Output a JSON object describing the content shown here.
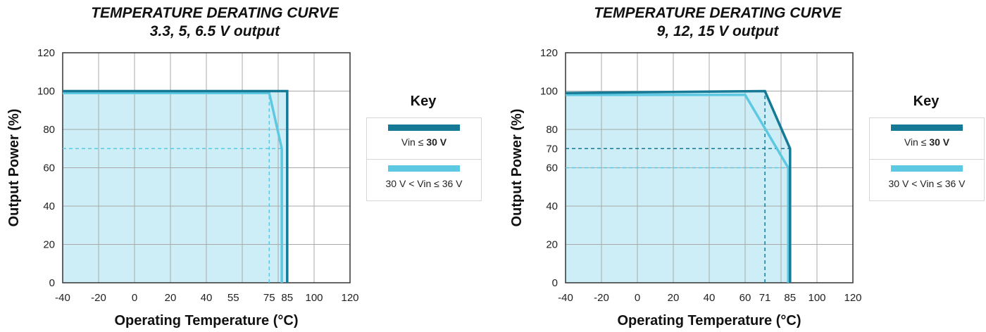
{
  "colors": {
    "dark_curve": "#167a96",
    "light_curve": "#5cc8e2",
    "fill": "#cdeef6",
    "grid": "#a9a9a9"
  },
  "chart_data": [
    {
      "type": "line",
      "title": "TEMPERATURE DERATING CURVE",
      "subtitle": "3.3, 5, 6.5 V output",
      "xlabel": "Operating Temperature (°C)",
      "ylabel": "Output Power (%)",
      "xlim": [
        -40,
        120
      ],
      "ylim": [
        0,
        120
      ],
      "x_ticks": [
        -40,
        -20,
        0,
        20,
        40,
        55,
        75,
        85,
        100,
        120
      ],
      "y_ticks": [
        0,
        20,
        40,
        60,
        80,
        100,
        120
      ],
      "grid_x": [
        -40,
        -20,
        0,
        20,
        40,
        60,
        80,
        100,
        120
      ],
      "grid_y": [
        0,
        20,
        40,
        60,
        80,
        100,
        120
      ],
      "grid": true,
      "series": [
        {
          "name": "Vin ≤ 30 V",
          "color_key": "dark_curve",
          "points": [
            [
              -40,
              100
            ],
            [
              85,
              100
            ],
            [
              85,
              0
            ]
          ]
        },
        {
          "name": "30 V < Vin ≤ 36 V",
          "color_key": "light_curve",
          "points": [
            [
              -40,
              99
            ],
            [
              75,
              99
            ],
            [
              82,
              70
            ],
            [
              82,
              0
            ]
          ]
        }
      ],
      "reference_lines": [
        {
          "color_key": "light_curve",
          "points": [
            [
              -40,
              70
            ],
            [
              82,
              70
            ]
          ]
        },
        {
          "color_key": "light_curve",
          "points": [
            [
              75,
              0
            ],
            [
              75,
              99
            ]
          ]
        }
      ],
      "key": {
        "title": "Key",
        "items": [
          {
            "label_prefix": "Vin ≤ ",
            "label_bold": "30 V",
            "color_key": "dark_curve"
          },
          {
            "label_prefix": "30 V < Vin ≤ 36 V",
            "label_bold": "",
            "color_key": "light_curve"
          }
        ]
      }
    },
    {
      "type": "line",
      "title": "TEMPERATURE DERATING CURVE",
      "subtitle": "9, 12, 15 V output",
      "xlabel": "Operating Temperature (°C)",
      "ylabel": "Output Power (%)",
      "xlim": [
        -40,
        120
      ],
      "ylim": [
        0,
        120
      ],
      "x_ticks": [
        -40,
        -20,
        0,
        20,
        40,
        60,
        71,
        85,
        100,
        120
      ],
      "y_ticks": [
        0,
        20,
        40,
        60,
        70,
        80,
        100,
        120
      ],
      "grid_x": [
        -40,
        -20,
        0,
        20,
        40,
        60,
        80,
        100,
        120
      ],
      "grid_y": [
        0,
        20,
        40,
        60,
        80,
        100,
        120
      ],
      "grid": true,
      "series": [
        {
          "name": "Vin ≤ 30 V",
          "color_key": "dark_curve",
          "points": [
            [
              -40,
              99
            ],
            [
              71,
              100
            ],
            [
              85,
              70
            ],
            [
              85,
              0
            ]
          ]
        },
        {
          "name": "30 V < Vin ≤ 36 V",
          "color_key": "light_curve",
          "points": [
            [
              -40,
              98
            ],
            [
              60,
              98
            ],
            [
              84,
              60
            ],
            [
              84,
              0
            ]
          ]
        }
      ],
      "reference_lines": [
        {
          "color_key": "dark_curve",
          "points": [
            [
              -40,
              70
            ],
            [
              85,
              70
            ]
          ]
        },
        {
          "color_key": "dark_curve",
          "points": [
            [
              71,
              0
            ],
            [
              71,
              100
            ]
          ]
        },
        {
          "color_key": "light_curve",
          "points": [
            [
              -40,
              60
            ],
            [
              84,
              60
            ]
          ]
        }
      ],
      "key": {
        "title": "Key",
        "items": [
          {
            "label_prefix": "Vin ≤ ",
            "label_bold": "30 V",
            "color_key": "dark_curve"
          },
          {
            "label_prefix": "30 V < Vin ≤ 36 V",
            "label_bold": "",
            "color_key": "light_curve"
          }
        ]
      }
    }
  ]
}
